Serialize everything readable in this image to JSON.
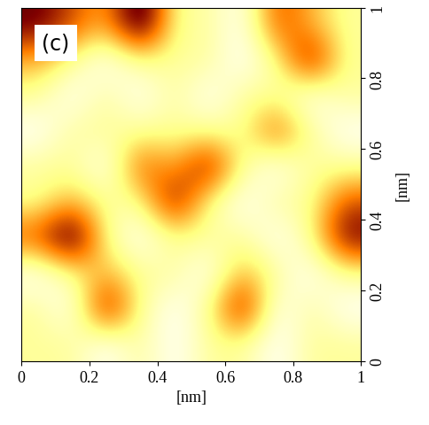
{
  "chart_data": {
    "type": "heatmap",
    "annotation": "(c)",
    "x_label": "[nm]",
    "y_label": "[nm]",
    "xlim": [
      0,
      1
    ],
    "ylim": [
      0,
      1
    ],
    "xticks": [
      0,
      0.2,
      0.4,
      0.6,
      0.8,
      1
    ],
    "yticks": [
      0,
      0.2,
      0.4,
      0.6,
      0.8,
      1
    ],
    "cells": [
      [
        6,
        6,
        7,
        6,
        7,
        6,
        6,
        7,
        6,
        6
      ],
      [
        6,
        7,
        3,
        6,
        7,
        6,
        3,
        7,
        6,
        7
      ],
      [
        7,
        6,
        5,
        6,
        6,
        7,
        5,
        6,
        7,
        6
      ],
      [
        4,
        2,
        6,
        7,
        6,
        6,
        6,
        7,
        6,
        3
      ],
      [
        6,
        5,
        6,
        6,
        3,
        6,
        7,
        6,
        6,
        4
      ],
      [
        6,
        6,
        7,
        4,
        5,
        3,
        6,
        7,
        6,
        6
      ],
      [
        7,
        6,
        6,
        6,
        6,
        6,
        6,
        4,
        6,
        7
      ],
      [
        6,
        7,
        6,
        7,
        6,
        7,
        6,
        6,
        7,
        6
      ],
      [
        5,
        6,
        7,
        6,
        6,
        6,
        7,
        6,
        3,
        6
      ],
      [
        3,
        4,
        5,
        2,
        6,
        6,
        7,
        4,
        5,
        6
      ]
    ]
  }
}
